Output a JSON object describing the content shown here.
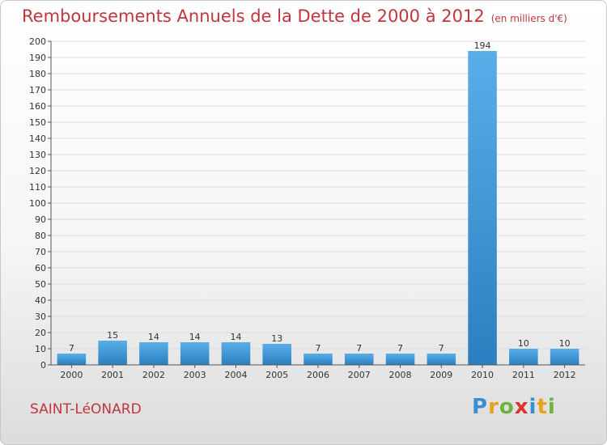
{
  "header": {
    "title": "Remboursements Annuels de la Dette de 2000 à 2012",
    "unit": "(en milliers d'€)"
  },
  "footer": {
    "commune": "SAINT-LéONARD",
    "logo_letters": [
      "P",
      "r",
      "o",
      "x",
      "i",
      "t",
      "i"
    ]
  },
  "colors": {
    "title": "#c0363c",
    "bar_top": "#5aaee8",
    "bar_bottom": "#2a7fc0",
    "axis": "#555555",
    "grid": "#dddddd"
  },
  "chart_data": {
    "type": "bar",
    "title": "Remboursements Annuels de la Dette de 2000 à 2012",
    "categories": [
      "2000",
      "2001",
      "2002",
      "2003",
      "2004",
      "2005",
      "2006",
      "2007",
      "2008",
      "2009",
      "2010",
      "2011",
      "2012"
    ],
    "values": [
      7,
      15,
      14,
      14,
      14,
      13,
      7,
      7,
      7,
      7,
      194,
      10,
      10
    ],
    "ylim": [
      0,
      200
    ],
    "yticks": [
      0,
      10,
      20,
      30,
      40,
      50,
      60,
      70,
      80,
      90,
      100,
      110,
      120,
      130,
      140,
      150,
      160,
      170,
      180,
      190,
      200
    ],
    "xlabel": "",
    "ylabel": "",
    "grid": true,
    "legend": false,
    "data_labels": true
  }
}
